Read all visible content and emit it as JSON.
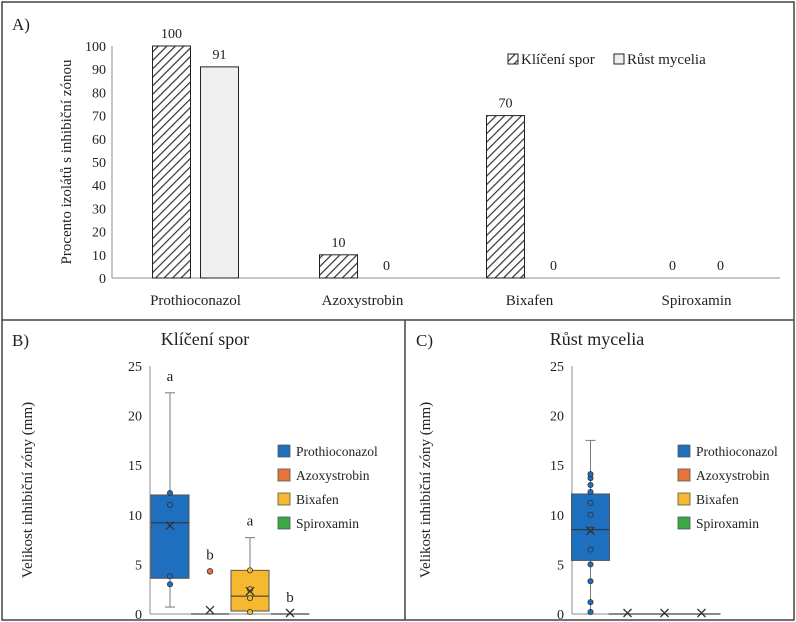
{
  "colors": {
    "frame": "#444444",
    "axis": "#8c8c8c",
    "text": "#222222",
    "hatch_bg": "#ffffff",
    "hatch_line": "#333333",
    "mycelium_fill": "#efefef"
  },
  "chart_data": [
    {
      "type": "bar",
      "panel_label": "A)",
      "ylabel": "Procento izolátů s inhibiční zónou",
      "ylim": [
        0,
        100
      ],
      "yticks": [
        0,
        10,
        20,
        30,
        40,
        50,
        60,
        70,
        80,
        90,
        100
      ],
      "categories": [
        "Prothioconazol",
        "Azoxystrobin",
        "Bixafen",
        "Spiroxamin"
      ],
      "series": [
        {
          "name": "Klíčení spor",
          "values": [
            100,
            10,
            70,
            0
          ],
          "pattern": "hatch"
        },
        {
          "name": "Růst mycelia",
          "values": [
            91,
            0,
            0,
            0
          ],
          "pattern": "solid"
        }
      ],
      "legend_position": "top-right"
    },
    {
      "type": "box",
      "panel_label": "B)",
      "title": "Klíčení spor",
      "ylabel": "Velikost inhibiční zóny (mm)",
      "ylim": [
        0,
        25
      ],
      "yticks": [
        0,
        5,
        10,
        15,
        20,
        25
      ],
      "legend": [
        {
          "name": "Prothioconazol",
          "color": "#1f6fbf"
        },
        {
          "name": "Azoxystrobin",
          "color": "#e8743b"
        },
        {
          "name": "Bixafen",
          "color": "#f5b82e"
        },
        {
          "name": "Spiroxamin",
          "color": "#3aa845"
        }
      ],
      "legend_position": "right",
      "boxes": [
        {
          "name": "Prothioconazol",
          "min": 0.7,
          "q1": 3.6,
          "median": 9.2,
          "q3": 12.0,
          "max": 22.3,
          "mean": 8.9,
          "points": [
            3.0,
            3.8,
            11.0,
            12.2
          ],
          "outliers": [],
          "letter": "a"
        },
        {
          "name": "Azoxystrobin",
          "min": 0,
          "q1": 0,
          "median": 0,
          "q3": 0,
          "max": 0,
          "mean": 0.4,
          "points": [],
          "outliers": [
            4.3
          ],
          "letter": "b"
        },
        {
          "name": "Bixafen",
          "min": 0,
          "q1": 0.3,
          "median": 1.8,
          "q3": 4.4,
          "max": 7.7,
          "mean": 2.3,
          "points": [
            0.2,
            1.6,
            2.5,
            4.4
          ],
          "outliers": [],
          "letter": "a"
        },
        {
          "name": "Spiroxamin",
          "min": 0,
          "q1": 0,
          "median": 0,
          "q3": 0,
          "max": 0,
          "mean": 0.1,
          "points": [],
          "outliers": [],
          "letter": "b"
        }
      ]
    },
    {
      "type": "box",
      "panel_label": "C)",
      "title": "Růst mycelia",
      "ylabel": "Velikost inhibiční zóny (mm)",
      "ylim": [
        0,
        25
      ],
      "yticks": [
        0,
        5,
        10,
        15,
        20,
        25
      ],
      "legend": [
        {
          "name": "Prothioconazol",
          "color": "#1f6fbf"
        },
        {
          "name": "Azoxystrobin",
          "color": "#e8743b"
        },
        {
          "name": "Bixafen",
          "color": "#f5b82e"
        },
        {
          "name": "Spiroxamin",
          "color": "#3aa845"
        }
      ],
      "legend_position": "right",
      "boxes": [
        {
          "name": "Prothioconazol",
          "min": 0,
          "q1": 5.4,
          "median": 8.5,
          "q3": 12.1,
          "max": 17.5,
          "mean": 8.4,
          "points": [
            0.2,
            1.2,
            3.3,
            5.0,
            6.5,
            8.5,
            10.0,
            11.2,
            12.3,
            13.0,
            13.7,
            14.1
          ],
          "outliers": [],
          "letter": ""
        },
        {
          "name": "Azoxystrobin",
          "min": 0,
          "q1": 0,
          "median": 0,
          "q3": 0,
          "max": 0,
          "mean": 0.1,
          "points": [],
          "outliers": [],
          "letter": ""
        },
        {
          "name": "Bixafen",
          "min": 0,
          "q1": 0,
          "median": 0,
          "q3": 0,
          "max": 0,
          "mean": 0.1,
          "points": [],
          "outliers": [],
          "letter": ""
        },
        {
          "name": "Spiroxamin",
          "min": 0,
          "q1": 0,
          "median": 0,
          "q3": 0,
          "max": 0,
          "mean": 0.1,
          "points": [],
          "outliers": [],
          "letter": ""
        }
      ]
    }
  ]
}
